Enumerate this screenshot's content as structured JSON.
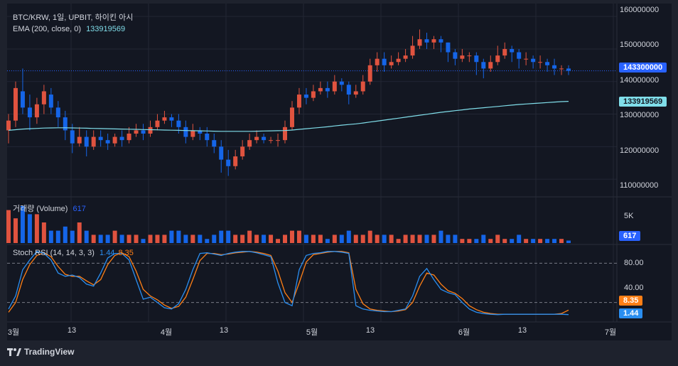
{
  "colors": {
    "up": "#ef5350",
    "down": "#2962ff",
    "upCandle": "#e0533f",
    "downCandle": "#1565e8",
    "ema": "#80deea",
    "k": "#2a8ef0",
    "d": "#ff7f16",
    "grid": "#232734",
    "bg": "#131722",
    "frame": "#1e222d"
  },
  "legend": {
    "symbol": "BTC/KRW, 1일, UPBIT, 하이킨 아시",
    "ema_label": "EMA (200, close, 0)",
    "ema_value": "133919569",
    "volume_label": "거래량 (Volume)",
    "volume_value": "617",
    "stoch_label": "Stoch RSI (14, 14, 3, 3)",
    "stoch_k": "1.44",
    "stoch_d": "8.35"
  },
  "price_axis": {
    "ticks": [
      "160000000",
      "150000000",
      "140000000",
      "130000000",
      "120000000",
      "110000000"
    ]
  },
  "volume_axis": {
    "ticks": [
      "5K"
    ]
  },
  "stoch_axis": {
    "ticks": [
      "80.00",
      "40.00"
    ]
  },
  "x_axis": {
    "ticks": [
      "3월",
      "13",
      "4월",
      "13",
      "5월",
      "13",
      "6월",
      "13",
      "7월"
    ]
  },
  "tags": {
    "price": "143300000",
    "ema": "133919569",
    "volume": "617",
    "stoch_d": "8.35",
    "stoch_k": "1.44"
  },
  "footer": {
    "brand": "TradingView"
  },
  "chart_data": {
    "type": "candlestick",
    "title": "BTC/KRW, 1일, UPBIT, 하이킨 아시",
    "price_range": [
      105000000,
      162000000
    ],
    "candles": [
      [
        125000000,
        128000000,
        130000000,
        121000000
      ],
      [
        128000000,
        138000000,
        140000000,
        126000000
      ],
      [
        137000000,
        132000000,
        144000000,
        130000000
      ],
      [
        132000000,
        129000000,
        136000000,
        125000000
      ],
      [
        129000000,
        133000000,
        135000000,
        127000000
      ],
      [
        133000000,
        137000000,
        139000000,
        130000000
      ],
      [
        136000000,
        132000000,
        138000000,
        130000000
      ],
      [
        132000000,
        129000000,
        134000000,
        126000000
      ],
      [
        129000000,
        125000000,
        131000000,
        122000000
      ],
      [
        125000000,
        121000000,
        127000000,
        118000000
      ],
      [
        121000000,
        123000000,
        126000000,
        120000000
      ],
      [
        123000000,
        120000000,
        125000000,
        117000000
      ],
      [
        120000000,
        123000000,
        125000000,
        119000000
      ],
      [
        123000000,
        122000000,
        125000000,
        120000000
      ],
      [
        122000000,
        121000000,
        124000000,
        119000000
      ],
      [
        121000000,
        123000000,
        124000000,
        120000000
      ],
      [
        123000000,
        122000000,
        125000000,
        120000000
      ],
      [
        122000000,
        124000000,
        126000000,
        121000000
      ],
      [
        124000000,
        125000000,
        127000000,
        123000000
      ],
      [
        125000000,
        124000000,
        127000000,
        122000000
      ],
      [
        124000000,
        126000000,
        128000000,
        123000000
      ],
      [
        126000000,
        128000000,
        130000000,
        125000000
      ],
      [
        128000000,
        129000000,
        131000000,
        127000000
      ],
      [
        129000000,
        128000000,
        130000000,
        126000000
      ],
      [
        128000000,
        126000000,
        130000000,
        124000000
      ],
      [
        126000000,
        123000000,
        128000000,
        121000000
      ],
      [
        123000000,
        125000000,
        127000000,
        122000000
      ],
      [
        125000000,
        124000000,
        126000000,
        122000000
      ],
      [
        124000000,
        122000000,
        126000000,
        120000000
      ],
      [
        122000000,
        120000000,
        124000000,
        118000000
      ],
      [
        120000000,
        116000000,
        122000000,
        112000000
      ],
      [
        116000000,
        114000000,
        119000000,
        111000000
      ],
      [
        114000000,
        117000000,
        119000000,
        113000000
      ],
      [
        117000000,
        120000000,
        122000000,
        116000000
      ],
      [
        120000000,
        122000000,
        124000000,
        119000000
      ],
      [
        122000000,
        123000000,
        125000000,
        121000000
      ],
      [
        123000000,
        122000000,
        124000000,
        121000000
      ],
      [
        122000000,
        122000000,
        123000000,
        121000000
      ],
      [
        122000000,
        122000000,
        124000000,
        120000000
      ],
      [
        122000000,
        126000000,
        128000000,
        121000000
      ],
      [
        126000000,
        132000000,
        134000000,
        125000000
      ],
      [
        132000000,
        136000000,
        138000000,
        130000000
      ],
      [
        136000000,
        135000000,
        138000000,
        133000000
      ],
      [
        135000000,
        137000000,
        139000000,
        134000000
      ],
      [
        137000000,
        138000000,
        140000000,
        136000000
      ],
      [
        138000000,
        137000000,
        140000000,
        135000000
      ],
      [
        137000000,
        140000000,
        142000000,
        136000000
      ],
      [
        140000000,
        139000000,
        141000000,
        137000000
      ],
      [
        139000000,
        136000000,
        140000000,
        133000000
      ],
      [
        136000000,
        137000000,
        139000000,
        135000000
      ],
      [
        137000000,
        140000000,
        142000000,
        136000000
      ],
      [
        140000000,
        145000000,
        147000000,
        139000000
      ],
      [
        145000000,
        147000000,
        149000000,
        143000000
      ],
      [
        147000000,
        145000000,
        149000000,
        143000000
      ],
      [
        145000000,
        146000000,
        148000000,
        144000000
      ],
      [
        146000000,
        147000000,
        149000000,
        145000000
      ],
      [
        147000000,
        148000000,
        150000000,
        146000000
      ],
      [
        148000000,
        151000000,
        154000000,
        147000000
      ],
      [
        151000000,
        153000000,
        156000000,
        150000000
      ],
      [
        153000000,
        152000000,
        155000000,
        150000000
      ],
      [
        152000000,
        153000000,
        154000000,
        150000000
      ],
      [
        153000000,
        152000000,
        154000000,
        149000000
      ],
      [
        152000000,
        149000000,
        152000000,
        146000000
      ],
      [
        149000000,
        147000000,
        150000000,
        145000000
      ],
      [
        147000000,
        148000000,
        150000000,
        146000000
      ],
      [
        148000000,
        148000000,
        149000000,
        146000000
      ],
      [
        148000000,
        146000000,
        149000000,
        142000000
      ],
      [
        146000000,
        144000000,
        147000000,
        141000000
      ],
      [
        144000000,
        146000000,
        148000000,
        143000000
      ],
      [
        146000000,
        148000000,
        151000000,
        145000000
      ],
      [
        148000000,
        150000000,
        152000000,
        147000000
      ],
      [
        150000000,
        149000000,
        151000000,
        146000000
      ],
      [
        149000000,
        147000000,
        150000000,
        144000000
      ],
      [
        147000000,
        147000000,
        149000000,
        145000000
      ],
      [
        147000000,
        146000000,
        148000000,
        144000000
      ],
      [
        146000000,
        146000000,
        148000000,
        144000000
      ],
      [
        146000000,
        145000000,
        147000000,
        143000000
      ],
      [
        145000000,
        144000000,
        147000000,
        142000000
      ],
      [
        144000000,
        144000000,
        145000000,
        142000000
      ],
      [
        144000000,
        143300000,
        145000000,
        142000000
      ]
    ],
    "ema": [
      125000000,
      125200000,
      125400000,
      125500000,
      125600000,
      125700000,
      125750000,
      125800000,
      125800000,
      125750000,
      125700000,
      125650000,
      125600000,
      125550000,
      125500000,
      125450000,
      125400000,
      125350000,
      125300000,
      125250000,
      125200000,
      125150000,
      125100000,
      125050000,
      125000000,
      124950000,
      124900000,
      124850000,
      124800000,
      124750000,
      124700000,
      124700000,
      124700000,
      124700000,
      124700000,
      124750000,
      124800000,
      124850000,
      124900000,
      124950000,
      125100000,
      125300000,
      125500000,
      125700000,
      125900000,
      126100000,
      126350000,
      126600000,
      126800000,
      127000000,
      127250000,
      127550000,
      127850000,
      128150000,
      128450000,
      128750000,
      129050000,
      129350000,
      129650000,
      129950000,
      130250000,
      130550000,
      130800000,
      131050000,
      131300000,
      131550000,
      131750000,
      131950000,
      132150000,
      132350000,
      132550000,
      132750000,
      132950000,
      133100000,
      133250000,
      133400000,
      133550000,
      133700000,
      133820000,
      133919569
    ],
    "volume": [
      8,
      6,
      9,
      7,
      7,
      5,
      3,
      3,
      4,
      3,
      5,
      3,
      2,
      2,
      2,
      3,
      2,
      2,
      2,
      1,
      2,
      2,
      2,
      3,
      3,
      2,
      2,
      2,
      1,
      2,
      3,
      3,
      2,
      2,
      3,
      2,
      2,
      2,
      1,
      2,
      3,
      3,
      2,
      2,
      2,
      1,
      2,
      2,
      3,
      2,
      2,
      3,
      2,
      2,
      2,
      1,
      2,
      2,
      2,
      2,
      2,
      3,
      2,
      2,
      1,
      1,
      1,
      2,
      1,
      2,
      1,
      1,
      2,
      1,
      1,
      1,
      1,
      1,
      1,
      0.6
    ],
    "stoch_k": [
      10,
      30,
      70,
      85,
      98,
      95,
      85,
      65,
      60,
      62,
      58,
      48,
      45,
      65,
      88,
      95,
      95,
      85,
      55,
      25,
      28,
      20,
      12,
      10,
      18,
      40,
      70,
      95,
      96,
      94,
      92,
      95,
      97,
      98,
      98,
      96,
      93,
      90,
      50,
      20,
      15,
      70,
      92,
      95,
      96,
      98,
      98,
      97,
      95,
      15,
      10,
      8,
      7,
      6,
      6,
      8,
      10,
      30,
      60,
      72,
      55,
      40,
      35,
      32,
      20,
      10,
      5,
      3,
      2,
      1.44,
      2,
      2,
      2,
      2,
      2,
      2,
      2,
      2,
      2,
      1.44
    ],
    "stoch_d": [
      5,
      20,
      55,
      78,
      92,
      96,
      90,
      75,
      63,
      60,
      60,
      53,
      47,
      55,
      78,
      92,
      96,
      90,
      68,
      40,
      30,
      24,
      16,
      11,
      14,
      28,
      55,
      84,
      95,
      95,
      93,
      94,
      96,
      97,
      98,
      97,
      95,
      92,
      68,
      35,
      20,
      50,
      82,
      93,
      95,
      97,
      98,
      98,
      96,
      40,
      18,
      10,
      8,
      7,
      6,
      7,
      9,
      20,
      45,
      65,
      62,
      48,
      38,
      34,
      26,
      15,
      9,
      5,
      3,
      2,
      2,
      2,
      2,
      2,
      2,
      2,
      2,
      2,
      3,
      8.35
    ],
    "stoch_levels": [
      80,
      20
    ],
    "x_ticks": [
      "3월",
      "13",
      "4월",
      "13",
      "5월",
      "13",
      "6월",
      "13",
      "7월"
    ],
    "price_last": 143300000,
    "ema_last": 133919569,
    "volume_last": 617
  }
}
